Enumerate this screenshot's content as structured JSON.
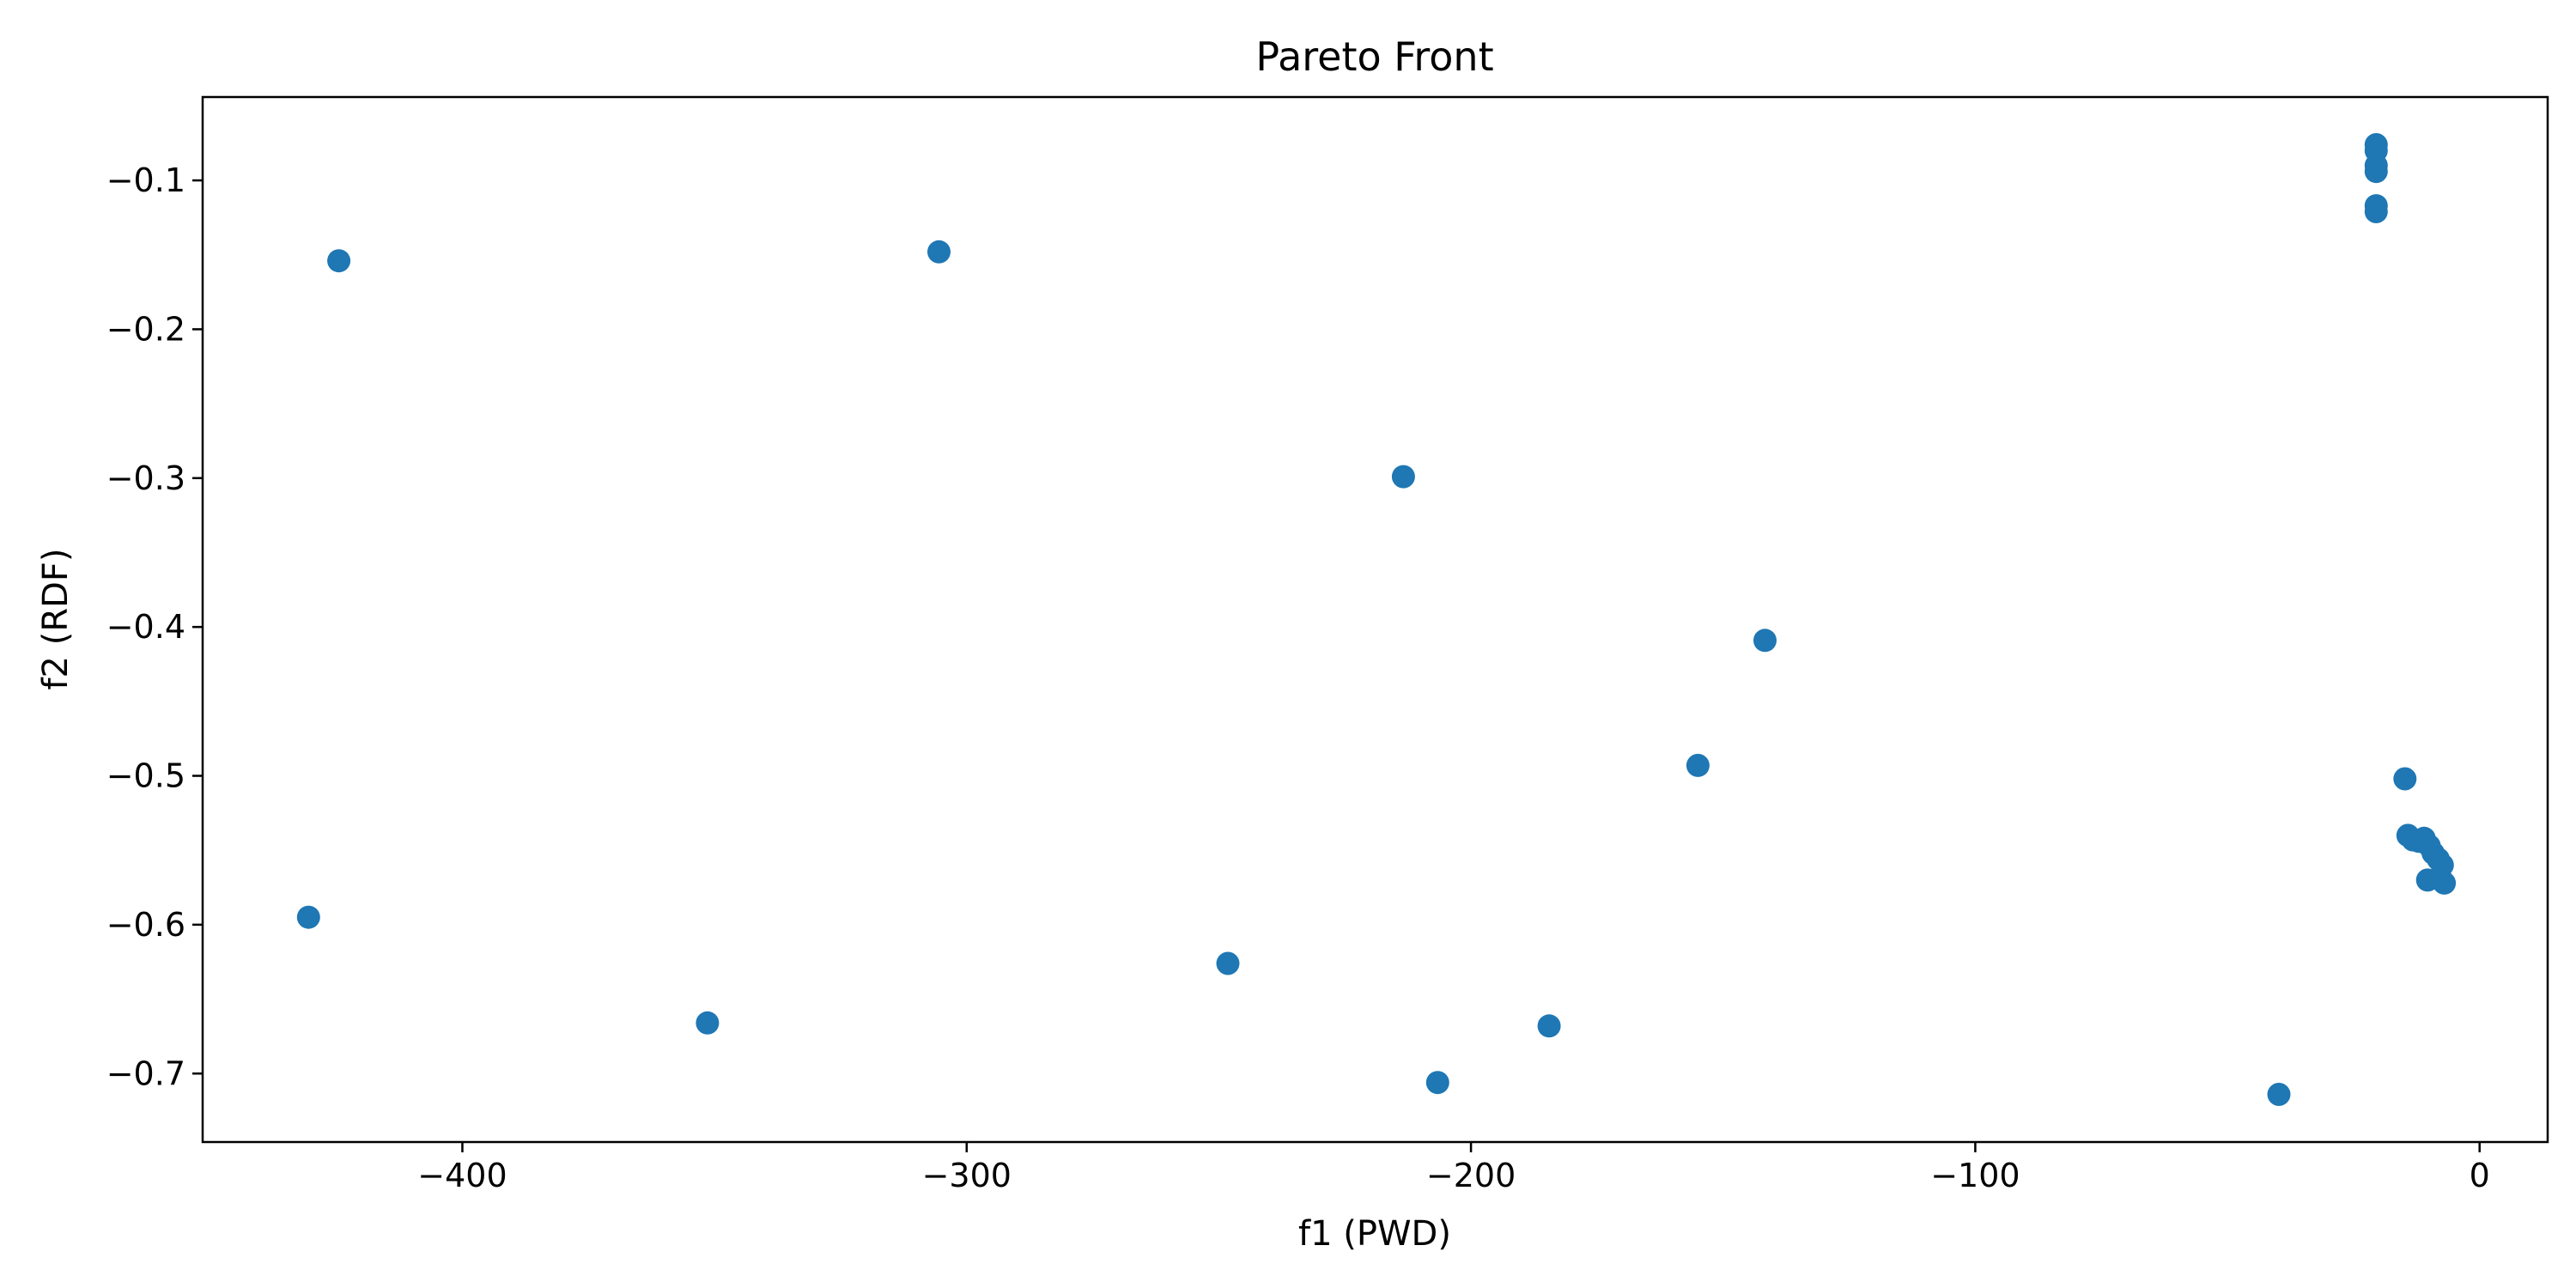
{
  "chart_data": {
    "type": "scatter",
    "title": "Pareto Front",
    "xlabel": "f1 (PWD)",
    "ylabel": "f2 (RDF)",
    "xlim": [
      -451.5,
      13.5
    ],
    "ylim": [
      -0.746,
      -0.044
    ],
    "xticks": [
      -400,
      -300,
      -200,
      -100,
      0
    ],
    "xtick_labels": [
      "−400",
      "−300",
      "−200",
      "−100",
      "0"
    ],
    "yticks": [
      -0.1,
      -0.2,
      -0.3,
      -0.4,
      -0.5,
      -0.6,
      -0.7
    ],
    "ytick_labels": [
      "−0.1",
      "−0.2",
      "−0.3",
      "−0.4",
      "−0.5",
      "−0.6",
      "−0.7"
    ],
    "grid": false,
    "legend": "none",
    "marker_color": "#1f77b4",
    "points": [
      {
        "x": -424.5,
        "y": -0.154
      },
      {
        "x": -305.5,
        "y": -0.148
      },
      {
        "x": -213.4,
        "y": -0.299
      },
      {
        "x": -141.7,
        "y": -0.409
      },
      {
        "x": -155.0,
        "y": -0.493
      },
      {
        "x": -430.5,
        "y": -0.595
      },
      {
        "x": -351.4,
        "y": -0.666
      },
      {
        "x": -248.2,
        "y": -0.626
      },
      {
        "x": -206.6,
        "y": -0.706
      },
      {
        "x": -184.5,
        "y": -0.668
      },
      {
        "x": -39.8,
        "y": -0.714
      },
      {
        "x": -20.5,
        "y": -0.076
      },
      {
        "x": -20.5,
        "y": -0.08
      },
      {
        "x": -20.5,
        "y": -0.09
      },
      {
        "x": -20.5,
        "y": -0.094
      },
      {
        "x": -20.5,
        "y": -0.117
      },
      {
        "x": -20.5,
        "y": -0.121
      },
      {
        "x": -14.8,
        "y": -0.502
      },
      {
        "x": -14.2,
        "y": -0.54
      },
      {
        "x": -13.2,
        "y": -0.543
      },
      {
        "x": -12.0,
        "y": -0.544
      },
      {
        "x": -11.0,
        "y": -0.542
      },
      {
        "x": -10.0,
        "y": -0.547
      },
      {
        "x": -9.2,
        "y": -0.552
      },
      {
        "x": -8.2,
        "y": -0.556
      },
      {
        "x": -7.4,
        "y": -0.56
      },
      {
        "x": -10.3,
        "y": -0.57
      },
      {
        "x": -7.8,
        "y": -0.568
      },
      {
        "x": -7.0,
        "y": -0.572
      }
    ]
  }
}
